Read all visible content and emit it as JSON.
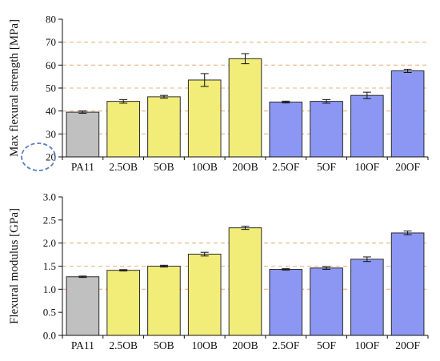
{
  "chart_data": [
    {
      "type": "bar",
      "categories": [
        "PA11",
        "2.5OB",
        "5OB",
        "10OB",
        "20OB",
        "2.5OF",
        "5OF",
        "10OF",
        "20OF"
      ],
      "values": [
        39.5,
        44.2,
        46.2,
        53.5,
        62.8,
        43.9,
        44.2,
        46.8,
        57.5
      ],
      "errors": [
        0.5,
        0.8,
        0.6,
        2.8,
        2.2,
        0.4,
        0.8,
        1.4,
        0.7
      ],
      "ylabel": "Max flexural strength [MPa]",
      "ylim": [
        20,
        80
      ],
      "yticks": [
        "20",
        "30",
        "40",
        "50",
        "60",
        "70",
        "80"
      ],
      "guide_lines": [
        30,
        40,
        50,
        60,
        70
      ],
      "highlighted_tick": "20"
    },
    {
      "type": "bar",
      "categories": [
        "PA11",
        "2.5OB",
        "5OB",
        "10OB",
        "20OB",
        "2.5OF",
        "5OF",
        "10OF",
        "20OF"
      ],
      "values": [
        1.27,
        1.41,
        1.5,
        1.76,
        2.33,
        1.43,
        1.46,
        1.65,
        2.22
      ],
      "errors": [
        0.015,
        0.015,
        0.02,
        0.04,
        0.035,
        0.015,
        0.03,
        0.05,
        0.04
      ],
      "ylabel": "Flexural modulus [GPa]",
      "ylim": [
        0,
        3
      ],
      "yticks": [
        "0.0",
        "0.5",
        "1.0",
        "1.5",
        "2.0",
        "2.5",
        "3.0"
      ],
      "guide_lines": [
        1.0,
        1.5,
        2.0
      ]
    }
  ],
  "colors": {
    "PA11": "#c0c0c0",
    "OB": "#f2ec78",
    "OF": "#8c97f4",
    "bar_stroke": "#2a2a2a",
    "guide": "#f0b080",
    "highlight_circle": "#5a7fc0"
  }
}
